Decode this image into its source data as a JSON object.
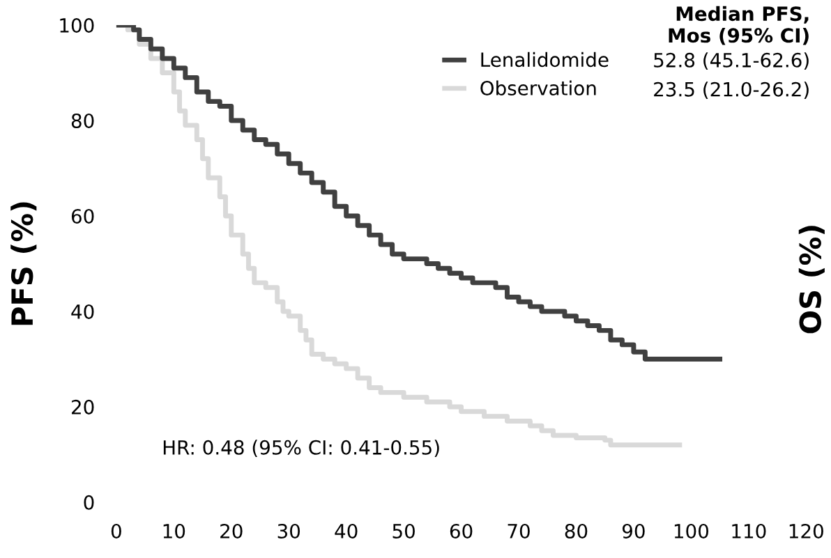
{
  "chart_data": {
    "type": "step",
    "ylabel": "PFS (%)",
    "legend_title": "Median PFS,\nMos (95% CI)",
    "legend": "top right",
    "grid": false,
    "marker": "none",
    "line_style": "solid",
    "xlim": [
      0,
      120
    ],
    "xticks": [
      0,
      10,
      20,
      30,
      40,
      50,
      60,
      70,
      80,
      90,
      100,
      110,
      120
    ],
    "ylim": [
      0,
      100
    ],
    "yticks": [
      0,
      20,
      40,
      60,
      80,
      100
    ],
    "annotations": [
      "52.8 (45.1-62.6)",
      "23.5 (21.0-26.2)",
      "HR: 0.48 (95% CI: 0.41-0.55)",
      "OS (%)"
    ],
    "series": [
      {
        "name": "Lenalidomide",
        "color": "#404040",
        "x": [
          0,
          3,
          4,
          6,
          8,
          10,
          12,
          14,
          16,
          18,
          20,
          22,
          24,
          26,
          28,
          30,
          32,
          34,
          36,
          38,
          40,
          42,
          44,
          46,
          48,
          50,
          54,
          56,
          58,
          60,
          62,
          66,
          68,
          70,
          72,
          74,
          78,
          80,
          82,
          84,
          86,
          88,
          90,
          92,
          105
        ],
        "values": [
          100,
          99,
          97,
          95,
          93,
          91,
          89,
          86,
          84,
          83,
          80,
          78,
          76,
          75,
          73,
          71,
          69,
          67,
          65,
          62,
          60,
          58,
          56,
          54,
          52,
          51,
          50,
          49,
          48,
          47,
          46,
          45,
          43,
          42,
          41,
          40,
          39,
          38,
          37,
          36,
          34,
          33,
          31.5,
          30,
          30
        ]
      },
      {
        "name": "Observation",
        "color": "#d9d9d9",
        "x": [
          0,
          2,
          4,
          6,
          8,
          10,
          11,
          12,
          14,
          15,
          16,
          18,
          19,
          20,
          22,
          23,
          24,
          26,
          28,
          29,
          30,
          32,
          33,
          34,
          36,
          38,
          40,
          42,
          44,
          46,
          50,
          54,
          58,
          60,
          64,
          68,
          72,
          74,
          76,
          80,
          85,
          86,
          98
        ],
        "values": [
          100,
          99,
          96,
          93,
          90,
          86,
          82,
          79,
          76,
          72,
          68,
          64,
          60,
          56,
          52,
          49,
          46,
          45,
          42,
          40,
          39,
          36,
          34,
          31,
          30,
          29,
          28,
          26,
          24,
          23,
          22,
          21,
          20,
          19,
          18,
          17,
          16,
          15,
          14,
          13.5,
          13,
          12,
          12
        ]
      }
    ]
  }
}
